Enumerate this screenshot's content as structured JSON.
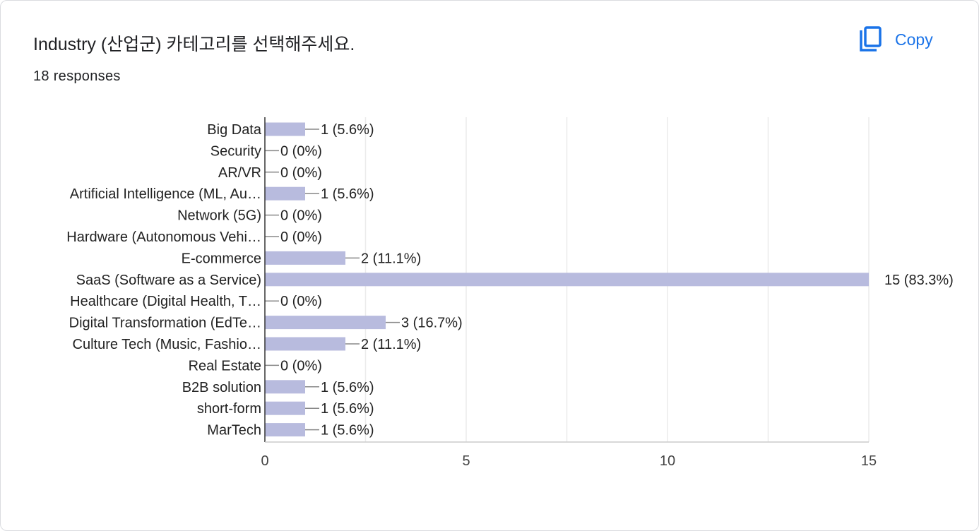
{
  "header": {
    "title": "Industry (산업군) 카테고리를 선택해주세요.",
    "responses": "18 responses",
    "copy_label": "Copy",
    "copy_icon": "copy-icon"
  },
  "colors": {
    "bar": "#b8bbde",
    "accent": "#1a73e8",
    "grid": "#ebebeb",
    "axis": "#333333"
  },
  "chart_data": {
    "type": "bar",
    "orientation": "horizontal",
    "categories": [
      "Big Data",
      "Security",
      "AR/VR",
      "Artificial Intelligence (ML, Au…",
      "Network (5G)",
      "Hardware (Autonomous Vehi…",
      "E-commerce",
      "SaaS (Software as a Service)",
      "Healthcare (Digital Health, T…",
      "Digital Transformation (EdTe…",
      "Culture Tech (Music, Fashio…",
      "Real Estate",
      "B2B solution",
      "short-form",
      "MarTech"
    ],
    "values": [
      1,
      0,
      0,
      1,
      0,
      0,
      2,
      15,
      0,
      3,
      2,
      0,
      1,
      1,
      1
    ],
    "data_labels": [
      "1 (5.6%)",
      "0 (0%)",
      "0 (0%)",
      "1 (5.6%)",
      "0 (0%)",
      "0 (0%)",
      "2 (11.1%)",
      "15 (83.3%)",
      "0 (0%)",
      "3 (16.7%)",
      "2 (11.1%)",
      "0 (0%)",
      "1 (5.6%)",
      "1 (5.6%)",
      "1 (5.6%)"
    ],
    "xlim": [
      0,
      15
    ],
    "xticks": [
      0,
      5,
      10,
      15
    ],
    "grid": true
  }
}
